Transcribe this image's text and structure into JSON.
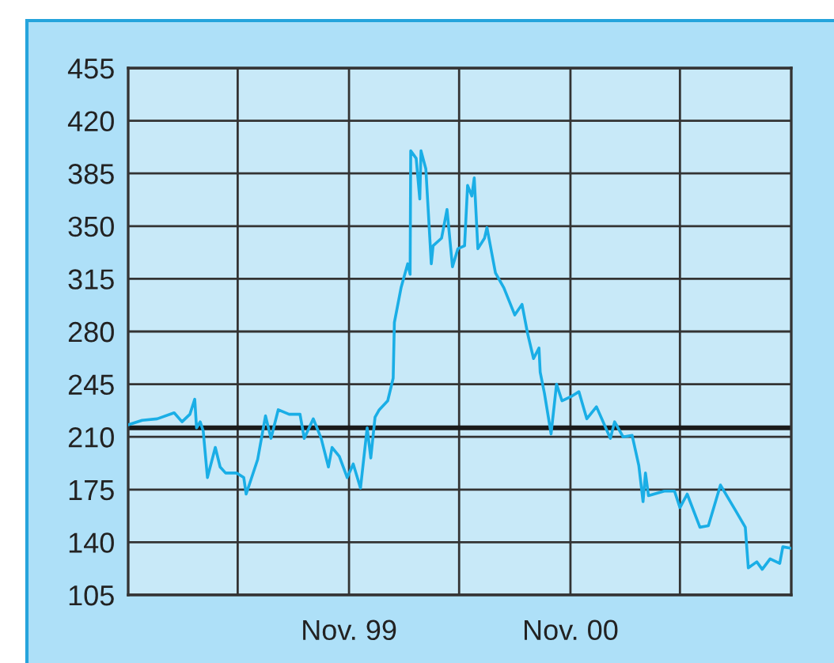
{
  "chart_data": {
    "type": "line",
    "xlim": [
      "1998-11-01",
      "2001-11-01"
    ],
    "xticks": [
      {
        "value": "1999-05-01",
        "label": null
      },
      {
        "value": "1999-11-01",
        "label": "Nov. 99"
      },
      {
        "value": "2000-05-01",
        "label": null
      },
      {
        "value": "2000-11-01",
        "label": "Nov. 00"
      },
      {
        "value": "2001-05-01",
        "label": null
      }
    ],
    "ylim": [
      105,
      455
    ],
    "yticks": [
      105,
      140,
      175,
      210,
      245,
      280,
      315,
      350,
      385,
      420,
      455
    ],
    "grid": true,
    "ref_lines": [
      {
        "axis": "y",
        "value": 216,
        "color": "#1a1a1a"
      }
    ],
    "series": [
      {
        "color": "#1aaee6",
        "x": [
          "1998-11-01",
          "1998-11-24",
          "1998-12-19",
          "1999-01-16",
          "1999-01-29",
          "1999-02-11",
          "1999-02-19",
          "1999-02-22",
          "1999-02-28",
          "1999-03-05",
          "1999-03-12",
          "1999-03-25",
          "1999-04-02",
          "1999-04-11",
          "1999-04-29",
          "1999-05-11",
          "1999-05-15",
          "1999-06-03",
          "1999-06-16",
          "1999-06-25",
          "1999-07-07",
          "1999-07-25",
          "1999-08-12",
          "1999-08-19",
          "1999-09-03",
          "1999-09-16",
          "1999-09-28",
          "1999-10-04",
          "1999-10-16",
          "1999-10-29",
          "1999-11-08",
          "1999-11-20",
          "1999-12-01",
          "1999-12-07",
          "1999-12-14",
          "1999-12-21",
          "2000-01-04",
          "2000-01-13",
          "2000-01-15",
          "2000-01-26",
          "2000-02-06",
          "2000-02-10",
          "2000-02-11",
          "2000-02-20",
          "2000-02-26",
          "2000-02-28",
          "2000-03-07",
          "2000-03-16",
          "2000-03-19",
          "2000-04-02",
          "2000-04-11",
          "2000-04-20",
          "2000-04-29",
          "2000-05-10",
          "2000-05-15",
          "2000-05-22",
          "2000-05-26",
          "2000-06-01",
          "2000-06-12",
          "2000-06-16",
          "2000-06-30",
          "2000-07-14",
          "2000-08-01",
          "2000-08-13",
          "2000-08-22",
          "2000-09-01",
          "2000-09-10",
          "2000-09-12",
          "2000-09-19",
          "2000-09-30",
          "2000-10-09",
          "2000-10-18",
          "2000-11-03",
          "2000-11-15",
          "2000-11-28",
          "2000-12-14",
          "2001-01-06",
          "2001-01-13",
          "2001-01-27",
          "2001-02-11",
          "2001-02-22",
          "2001-03-01",
          "2001-03-05",
          "2001-03-10",
          "2001-04-05",
          "2001-04-22",
          "2001-05-01",
          "2001-05-13",
          "2001-06-03",
          "2001-06-17",
          "2001-07-07",
          "2001-08-01",
          "2001-08-17",
          "2001-08-22",
          "2001-09-05",
          "2001-09-14",
          "2001-09-27",
          "2001-10-13",
          "2001-10-18",
          "2001-11-01"
        ],
        "values": [
          218,
          221,
          222,
          226,
          220,
          225,
          235,
          216,
          220,
          214,
          183,
          203,
          190,
          186,
          186,
          183,
          172,
          195,
          224,
          209,
          228,
          225,
          225,
          209,
          222,
          209,
          190,
          203,
          197,
          183,
          192,
          176,
          216,
          196,
          223,
          228,
          234,
          249,
          286,
          309,
          325,
          318,
          400,
          395,
          368,
          400,
          388,
          325,
          337,
          342,
          361,
          323,
          335,
          337,
          377,
          370,
          382,
          335,
          342,
          349,
          319,
          309,
          291,
          298,
          279,
          262,
          269,
          253,
          239,
          212,
          245,
          234,
          237,
          240,
          222,
          230,
          209,
          220,
          210,
          211,
          191,
          167,
          186,
          171,
          174,
          174,
          163,
          172,
          150,
          151,
          178,
          161,
          150,
          123,
          127,
          122,
          129,
          126,
          137,
          136
        ]
      }
    ]
  }
}
